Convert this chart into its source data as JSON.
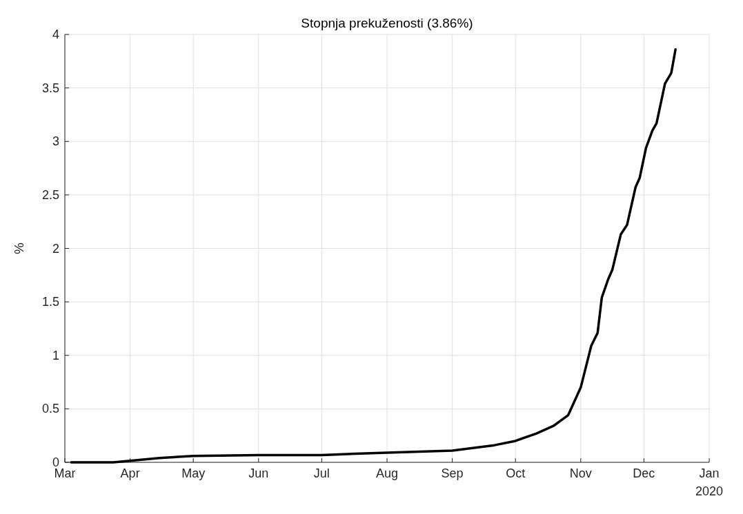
{
  "chart_data": {
    "type": "line",
    "title": "Stopnja prekuženosti (3.86%)",
    "ylabel": "%",
    "annotations": [
      "2020"
    ],
    "x": [
      "2020-03-04",
      "2020-03-24",
      "2020-04-01",
      "2020-04-15",
      "2020-05-01",
      "2020-06-01",
      "2020-07-01",
      "2020-07-17",
      "2020-08-01",
      "2020-09-01",
      "2020-09-21",
      "2020-10-01",
      "2020-10-11",
      "2020-10-19",
      "2020-10-26",
      "2020-11-01",
      "2020-11-06",
      "2020-11-09",
      "2020-11-11",
      "2020-11-14",
      "2020-11-16",
      "2020-11-20",
      "2020-11-23",
      "2020-11-27",
      "2020-11-29",
      "2020-12-02",
      "2020-12-05",
      "2020-12-07",
      "2020-12-11",
      "2020-12-14",
      "2020-12-16"
    ],
    "series": [
      {
        "color": "#000000",
        "values": [
          0,
          0,
          0.015,
          0.04,
          0.06,
          0.068,
          0.068,
          0.08,
          0.09,
          0.11,
          0.16,
          0.2,
          0.27,
          0.34,
          0.44,
          0.7,
          1.09,
          1.21,
          1.54,
          1.71,
          1.8,
          2.13,
          2.22,
          2.57,
          2.66,
          2.94,
          3.1,
          3.17,
          3.54,
          3.64,
          3.86
        ]
      }
    ],
    "xlim": [
      "2020-03-01",
      "2021-01-01"
    ],
    "xticks": [
      {
        "value": "2020-03-01",
        "label": "Mar"
      },
      {
        "value": "2020-04-01",
        "label": "Apr"
      },
      {
        "value": "2020-05-01",
        "label": "May"
      },
      {
        "value": "2020-06-01",
        "label": "Jun"
      },
      {
        "value": "2020-07-01",
        "label": "Jul"
      },
      {
        "value": "2020-08-01",
        "label": "Aug"
      },
      {
        "value": "2020-09-01",
        "label": "Sep"
      },
      {
        "value": "2020-10-01",
        "label": "Oct"
      },
      {
        "value": "2020-11-01",
        "label": "Nov"
      },
      {
        "value": "2020-12-01",
        "label": "Dec"
      },
      {
        "value": "2021-01-01",
        "label": "Jan"
      }
    ],
    "ylim": [
      0,
      4
    ],
    "yticks": [
      0,
      0.5,
      1,
      1.5,
      2,
      2.5,
      3,
      3.5,
      4
    ],
    "grid": true,
    "line_style": "solid",
    "marker": "none"
  }
}
